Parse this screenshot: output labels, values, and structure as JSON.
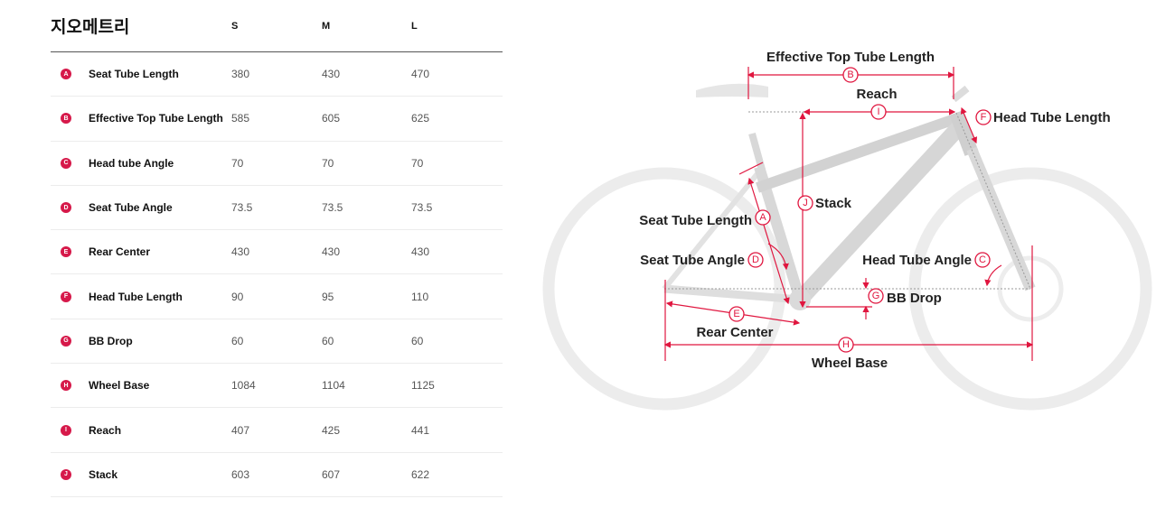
{
  "table": {
    "title": "지오메트리",
    "columns": [
      "S",
      "M",
      "L"
    ],
    "rows": [
      {
        "letter": "A",
        "label": "Seat Tube Length",
        "values": [
          "380",
          "430",
          "470"
        ]
      },
      {
        "letter": "B",
        "label": "Effective Top Tube Length",
        "values": [
          "585",
          "605",
          "625"
        ]
      },
      {
        "letter": "C",
        "label": "Head tube Angle",
        "values": [
          "70",
          "70",
          "70"
        ]
      },
      {
        "letter": "D",
        "label": "Seat Tube Angle",
        "values": [
          "73.5",
          "73.5",
          "73.5"
        ]
      },
      {
        "letter": "E",
        "label": "Rear Center",
        "values": [
          "430",
          "430",
          "430"
        ]
      },
      {
        "letter": "F",
        "label": "Head Tube Length",
        "values": [
          "90",
          "95",
          "110"
        ]
      },
      {
        "letter": "G",
        "label": "BB Drop",
        "values": [
          "60",
          "60",
          "60"
        ]
      },
      {
        "letter": "H",
        "label": "Wheel Base",
        "values": [
          "1084",
          "1104",
          "1125"
        ]
      },
      {
        "letter": "I",
        "label": "Reach",
        "values": [
          "407",
          "425",
          "441"
        ]
      },
      {
        "letter": "J",
        "label": "Stack",
        "values": [
          "603",
          "607",
          "622"
        ]
      }
    ]
  },
  "diagram": {
    "accent_color": "#e0163f",
    "labels": {
      "effective_top_tube": "Effective Top Tube Length",
      "reach": "Reach",
      "head_tube_length": "Head Tube Length",
      "stack": "Stack",
      "seat_tube_length": "Seat Tube Length",
      "seat_tube_angle": "Seat Tube Angle",
      "head_tube_angle": "Head Tube Angle",
      "bb_drop": "BB Drop",
      "rear_center": "Rear Center",
      "wheel_base": "Wheel Base"
    },
    "letters": {
      "a": "A",
      "b": "B",
      "c": "C",
      "d": "D",
      "e": "E",
      "f": "F",
      "g": "G",
      "h": "H",
      "i": "I",
      "j": "J"
    }
  }
}
